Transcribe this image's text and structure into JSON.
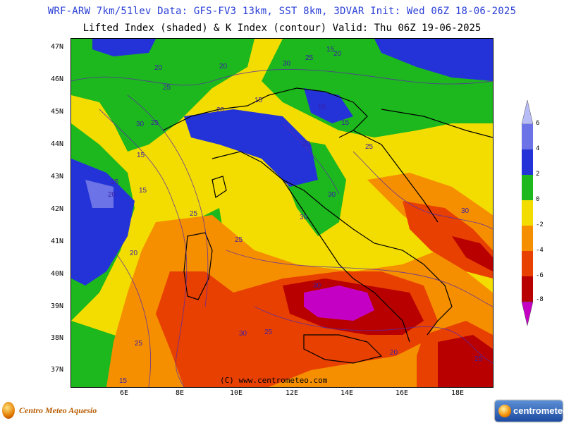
{
  "header": {
    "title_line1": "WRF-ARW 7km/51lev  Data: GFS-FV3 13km, SST 8km, 3DVAR  Init: Wed 06Z 18-06-2025",
    "title_line2": "Lifted Index (shaded) & K Index (contour)  Valid: Thu 06Z 19-06-2025"
  },
  "map": {
    "lat_labels": [
      "47N",
      "46N",
      "45N",
      "44N",
      "43N",
      "42N",
      "41N",
      "40N",
      "39N",
      "38N",
      "37N"
    ],
    "lon_labels": [
      "6E",
      "8E",
      "10E",
      "12E",
      "14E",
      "16E",
      "18E"
    ],
    "copyright": "(C) www.centrometeo.com",
    "contour_labels": [
      "20",
      "25",
      "30",
      "25",
      "15",
      "20",
      "15",
      "20",
      "25",
      "30",
      "20",
      "15",
      "15",
      "15",
      "25",
      "20",
      "20",
      "15",
      "25",
      "30",
      "30",
      "25",
      "20",
      "30",
      "30",
      "25",
      "25",
      "25",
      "30",
      "20",
      "25",
      "15"
    ]
  },
  "colorbar": {
    "labels": [
      "6",
      "4",
      "2",
      "0",
      "-2",
      "-4",
      "-6",
      "-8"
    ],
    "colors": [
      "#b8bcf6",
      "#6b73e6",
      "#2433d8",
      "#1db81d",
      "#f3dd00",
      "#f58f00",
      "#e84000",
      "#b80000",
      "#c400c4"
    ]
  },
  "logos": {
    "left_text": "Centro Meteo Aquesio",
    "right_text": "centrometeo"
  }
}
